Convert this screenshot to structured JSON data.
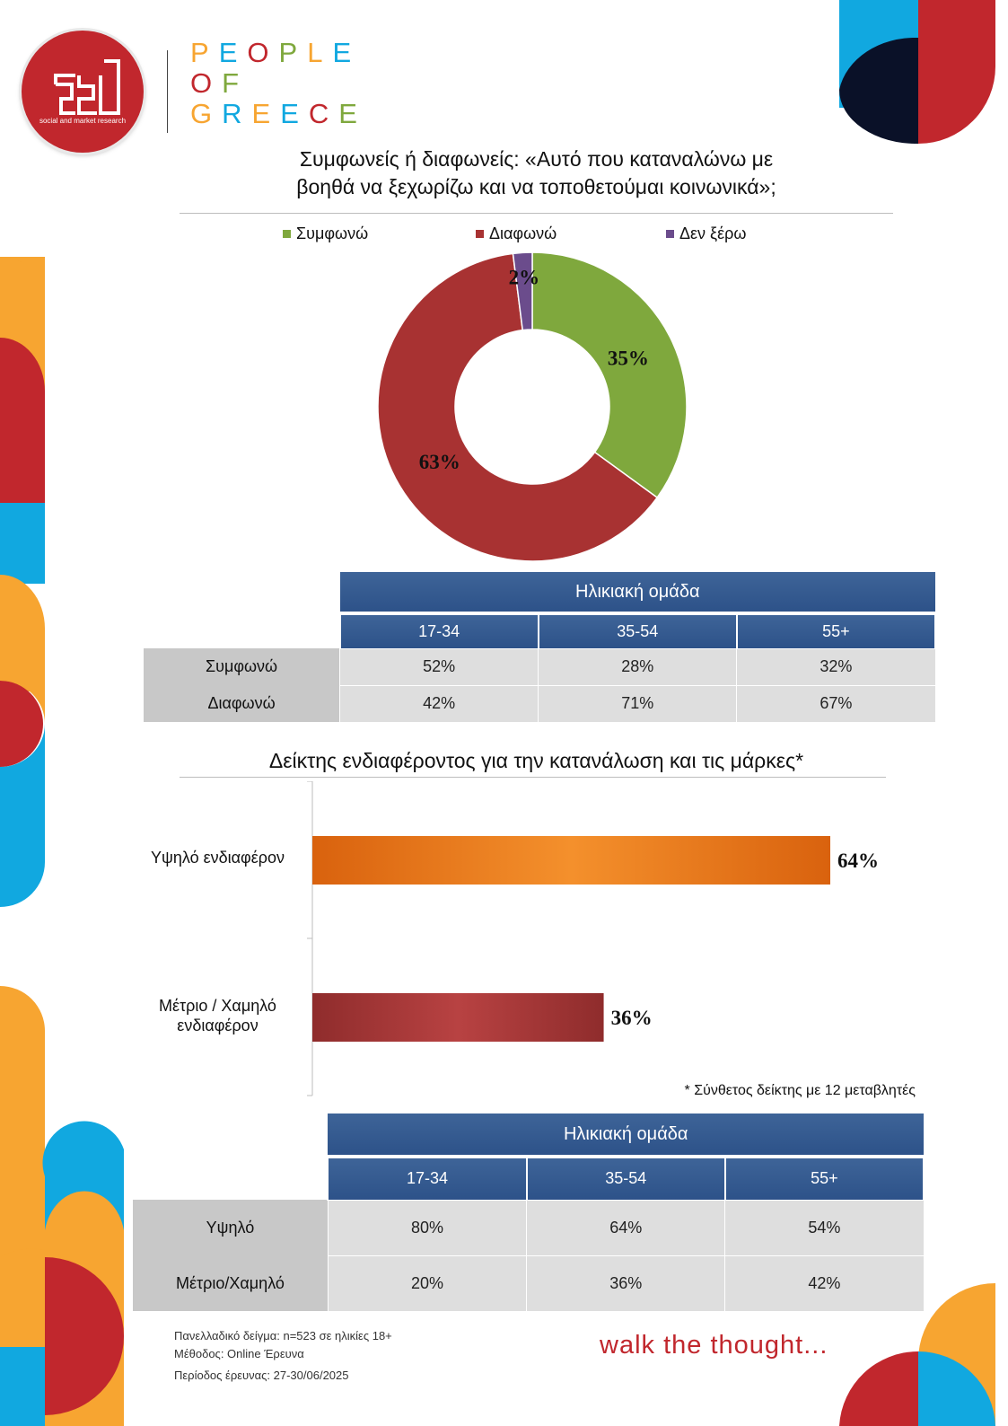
{
  "brand": {
    "logo_sub": "social and market research",
    "people_of_greece": [
      "PEOPLE",
      "OF",
      "GREECE"
    ],
    "tagline": "walk the thought...",
    "colors": {
      "red": "#c1272d",
      "orange": "#f7a531",
      "blue": "#11a8e0",
      "navy": "#0a1128"
    }
  },
  "chart_data": [
    {
      "type": "pie",
      "title": "Συμφωνείς ή διαφωνείς: «Αυτό που καταναλώνω με βοηθά να ξεχωρίζω και να τοποθετούμαι κοινωνικά»;",
      "title_lines": [
        "Συμφωνείς ή διαφωνείς: «Αυτό που καταναλώνω με",
        "βοηθά να ξεχωρίζω και να τοποθετούμαι κοινωνικά»;"
      ],
      "donut": true,
      "legend_position": "top",
      "categories": [
        "Συμφωνώ",
        "Διαφωνώ",
        "Δεν ξέρω"
      ],
      "values": [
        35,
        63,
        2
      ],
      "labels": [
        "35%",
        "63%",
        "2%"
      ],
      "colors": [
        "#7fa83d",
        "#a83232",
        "#6b4c8c"
      ]
    },
    {
      "type": "table",
      "header": "Ηλικιακή ομάδα",
      "columns": [
        "17-34",
        "35-54",
        "55+"
      ],
      "rows": [
        {
          "label": "Συμφωνώ",
          "values": [
            "52%",
            "28%",
            "32%"
          ]
        },
        {
          "label": "Διαφωνώ",
          "values": [
            "42%",
            "71%",
            "67%"
          ]
        }
      ]
    },
    {
      "type": "bar",
      "orientation": "horizontal",
      "title": "Δείκτης ενδιαφέροντος για την κατανάλωση και τις μάρκες*",
      "categories": [
        "Υψηλό ενδιαφέρον",
        "Μέτριο / Χαμηλό ενδιαφέρον"
      ],
      "category_lines": [
        [
          "Υψηλό ενδιαφέρον"
        ],
        [
          "Μέτριο / Χαμηλό",
          "ενδιαφέρον"
        ]
      ],
      "values": [
        64,
        36
      ],
      "labels": [
        "64%",
        "36%"
      ],
      "colors": [
        "#e8791f",
        "#a83232"
      ],
      "xlim": [
        0,
        64
      ],
      "note": "* Σύνθετος δείκτης με 12 μεταβλητές"
    },
    {
      "type": "table",
      "header": "Ηλικιακή ομάδα",
      "columns": [
        "17-34",
        "35-54",
        "55+"
      ],
      "rows": [
        {
          "label": "Υψηλό",
          "values": [
            "80%",
            "64%",
            "54%"
          ]
        },
        {
          "label": "Μέτριο/Χαμηλό",
          "values": [
            "20%",
            "36%",
            "42%"
          ]
        }
      ]
    }
  ],
  "footer": {
    "lines": [
      "Πανελλαδικό δείγμα: n=523 σε ηλικίες 18+",
      "Μέθοδος: Online Έρευνα",
      "Περίοδος έρευνας:  27-30/06/2025"
    ]
  }
}
